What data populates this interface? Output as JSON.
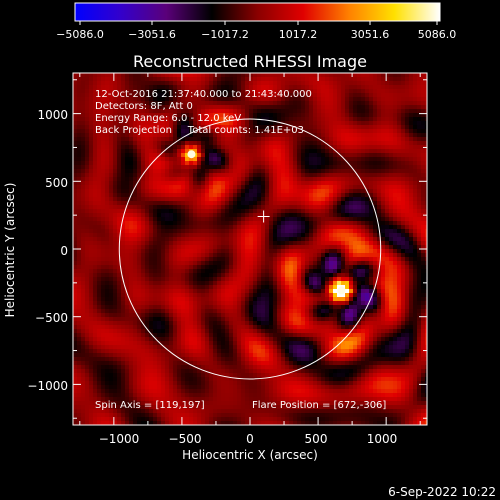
{
  "colorbar": {
    "tick_labels": [
      "−5086.0",
      "−3051.6",
      "−1017.2",
      "1017.2",
      "3051.6",
      "5086.0"
    ],
    "min": -5086.0,
    "max": 5086.0,
    "colors": [
      "#0000ff",
      "#3300cc",
      "#5a007a",
      "#000000",
      "#8a0000",
      "#e00000",
      "#ff8000",
      "#ffe000",
      "#ffffff"
    ]
  },
  "plot": {
    "title": "Reconstructed RHESSI Image",
    "info_lines": [
      "12-Oct-2016 21:37:40.000 to 21:43:40.000",
      "Detectors: 8F, Att 0",
      "Energy Range: 6.0 - 12.0 keV",
      "Back Projection     Total counts: 1.41E+03"
    ],
    "spin_axis_label": "Spin Axis = [119,197]",
    "flare_position_label": "Flare Position = [672,-306]",
    "footer_date": "6-Sep-2022 10:22"
  },
  "chart_data": {
    "type": "heatmap",
    "title": "Reconstructed RHESSI Image",
    "xlabel": "Heliocentric X (arcsec)",
    "ylabel": "Heliocentric Y (arcsec)",
    "xlim": [
      -1300,
      1300
    ],
    "ylim": [
      -1300,
      1300
    ],
    "x_ticks": [
      -1000,
      -500,
      0,
      500,
      1000
    ],
    "y_ticks": [
      -1000,
      -500,
      0,
      500,
      1000
    ],
    "x_tick_labels": [
      "−1000",
      "−500",
      "0",
      "500",
      "1000"
    ],
    "y_tick_labels": [
      "−1000",
      "−500",
      "0",
      "500",
      "1000"
    ],
    "solar_limb_radius": 960,
    "sun_center_marker": [
      100,
      240
    ],
    "sources": [
      {
        "x": 672,
        "y": -306,
        "intensity": 5086.0,
        "label": "Flare Position"
      },
      {
        "x": -430,
        "y": 700,
        "intensity": 3300.0
      }
    ],
    "spin_axis": [
      119,
      197
    ],
    "flare_position": [
      672,
      -306
    ],
    "colorbar_range": [
      -5086.0,
      5086.0
    ],
    "total_counts": "1.41E+03"
  }
}
